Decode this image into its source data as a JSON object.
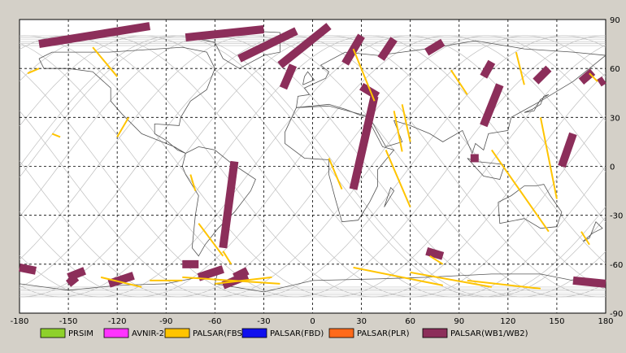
{
  "axes": {
    "lon_ticks": [
      -180,
      -150,
      -120,
      -90,
      -60,
      -30,
      0,
      30,
      60,
      90,
      120,
      150,
      180
    ],
    "lat_ticks": [
      90,
      60,
      30,
      0,
      -30,
      -60,
      -90
    ]
  },
  "legend": [
    {
      "label": "PRSIM",
      "color": "#8ed12a"
    },
    {
      "label": "AVNIR-2",
      "color": "#ff33ff"
    },
    {
      "label": "PALSAR(FBS)",
      "color": "#ffc400"
    },
    {
      "label": "PALSAR(FBD)",
      "color": "#1010ee"
    },
    {
      "label": "PALSAR(PLR)",
      "color": "#ff6a1a"
    },
    {
      "label": "PALSAR(WB1/WB2)",
      "color": "#8c2e5a"
    }
  ],
  "colors": {
    "wb": "#8c2e5a",
    "fbs": "#ffc400",
    "orbit": "#bfbfbf",
    "coast": "#555555",
    "grid": "#000000"
  },
  "chart_data": {
    "type": "map",
    "xlim": [
      -180,
      180
    ],
    "ylim": [
      -90,
      90
    ],
    "grid": true,
    "wb_swaths": [
      {
        "lon1": -168,
        "lat1": 75,
        "lon2": -100,
        "lat2": 86
      },
      {
        "lon1": -78,
        "lat1": 79,
        "lon2": -30,
        "lat2": 84
      },
      {
        "lon1": -45,
        "lat1": 66,
        "lon2": -10,
        "lat2": 83
      },
      {
        "lon1": -20,
        "lat1": 62,
        "lon2": 10,
        "lat2": 86
      },
      {
        "lon1": -18,
        "lat1": 48,
        "lon2": -12,
        "lat2": 62
      },
      {
        "lon1": 20,
        "lat1": 63,
        "lon2": 30,
        "lat2": 80
      },
      {
        "lon1": 42,
        "lat1": 66,
        "lon2": 50,
        "lat2": 78
      },
      {
        "lon1": 70,
        "lat1": 70,
        "lon2": 80,
        "lat2": 76
      },
      {
        "lon1": 105,
        "lat1": 55,
        "lon2": 110,
        "lat2": 64
      },
      {
        "lon1": 137,
        "lat1": 52,
        "lon2": 145,
        "lat2": 60
      },
      {
        "lon1": 165,
        "lat1": 52,
        "lon2": 172,
        "lat2": 58
      },
      {
        "lon1": 176,
        "lat1": 51,
        "lon2": 179,
        "lat2": 53
      },
      {
        "lon1": 30,
        "lat1": 49,
        "lon2": 40,
        "lat2": 43
      },
      {
        "lon1": 25,
        "lat1": -14,
        "lon2": 38,
        "lat2": 43
      },
      {
        "lon1": 105,
        "lat1": 25,
        "lon2": 115,
        "lat2": 50
      },
      {
        "lon1": 97,
        "lat1": 5,
        "lon2": 102,
        "lat2": 5
      },
      {
        "lon1": 153,
        "lat1": 0,
        "lon2": 160,
        "lat2": 20
      },
      {
        "lon1": -80,
        "lat1": -60,
        "lon2": -70,
        "lat2": -60
      },
      {
        "lon1": -55,
        "lat1": -50,
        "lon2": -48,
        "lat2": 3
      },
      {
        "lon1": -180,
        "lat1": -62,
        "lon2": -170,
        "lat2": -64
      },
      {
        "lon1": -150,
        "lat1": -68,
        "lon2": -140,
        "lat2": -64
      },
      {
        "lon1": -125,
        "lat1": -72,
        "lon2": -110,
        "lat2": -67
      },
      {
        "lon1": -150,
        "lat1": -72,
        "lon2": -145,
        "lat2": -68
      },
      {
        "lon1": -70,
        "lat1": -68,
        "lon2": -55,
        "lat2": -63
      },
      {
        "lon1": -55,
        "lat1": -73,
        "lon2": -40,
        "lat2": -67
      },
      {
        "lon1": -48,
        "lat1": -68,
        "lon2": -40,
        "lat2": -64
      },
      {
        "lon1": 70,
        "lat1": -52,
        "lon2": 80,
        "lat2": -55
      },
      {
        "lon1": 160,
        "lat1": -70,
        "lon2": 180,
        "lat2": -72
      }
    ],
    "fbs_tracks": [
      {
        "lon1": -135,
        "lat1": 73,
        "lon2": -120,
        "lat2": 55
      },
      {
        "lon1": -120,
        "lat1": 18,
        "lon2": -113,
        "lat2": 30
      },
      {
        "lon1": -175,
        "lat1": 57,
        "lon2": -168,
        "lat2": 60
      },
      {
        "lon1": -160,
        "lat1": 20,
        "lon2": -155,
        "lat2": 18
      },
      {
        "lon1": -75,
        "lat1": -5,
        "lon2": -72,
        "lat2": -15
      },
      {
        "lon1": -70,
        "lat1": -35,
        "lon2": -55,
        "lat2": -55
      },
      {
        "lon1": -55,
        "lat1": -52,
        "lon2": -50,
        "lat2": -60
      },
      {
        "lon1": 10,
        "lat1": 5,
        "lon2": 18,
        "lat2": -14
      },
      {
        "lon1": 25,
        "lat1": 72,
        "lon2": 38,
        "lat2": 40
      },
      {
        "lon1": 50,
        "lat1": 34,
        "lon2": 55,
        "lat2": 9
      },
      {
        "lon1": 45,
        "lat1": 10,
        "lon2": 60,
        "lat2": -25
      },
      {
        "lon1": 55,
        "lat1": 38,
        "lon2": 60,
        "lat2": 15
      },
      {
        "lon1": 85,
        "lat1": 59,
        "lon2": 95,
        "lat2": 44
      },
      {
        "lon1": 125,
        "lat1": 70,
        "lon2": 130,
        "lat2": 50
      },
      {
        "lon1": 110,
        "lat1": 10,
        "lon2": 145,
        "lat2": -40
      },
      {
        "lon1": 140,
        "lat1": 30,
        "lon2": 150,
        "lat2": -20
      },
      {
        "lon1": 170,
        "lat1": 57,
        "lon2": 175,
        "lat2": 52
      },
      {
        "lon1": 165,
        "lat1": -40,
        "lon2": 170,
        "lat2": -48
      },
      {
        "lon1": 80,
        "lat1": -60,
        "lon2": 72,
        "lat2": -55
      },
      {
        "lon1": -80,
        "lat1": -68,
        "lon2": -20,
        "lat2": -72
      },
      {
        "lon1": -60,
        "lat1": -72,
        "lon2": -25,
        "lat2": -68
      },
      {
        "lon1": 25,
        "lat1": -62,
        "lon2": 80,
        "lat2": -73
      },
      {
        "lon1": 60,
        "lat1": -65,
        "lon2": 110,
        "lat2": -74
      },
      {
        "lon1": 95,
        "lat1": -70,
        "lon2": 140,
        "lat2": -75
      },
      {
        "lon1": -100,
        "lat1": -70,
        "lon2": -80,
        "lat2": -70
      },
      {
        "lon1": -130,
        "lat1": -68,
        "lon2": -105,
        "lat2": -74
      }
    ]
  }
}
